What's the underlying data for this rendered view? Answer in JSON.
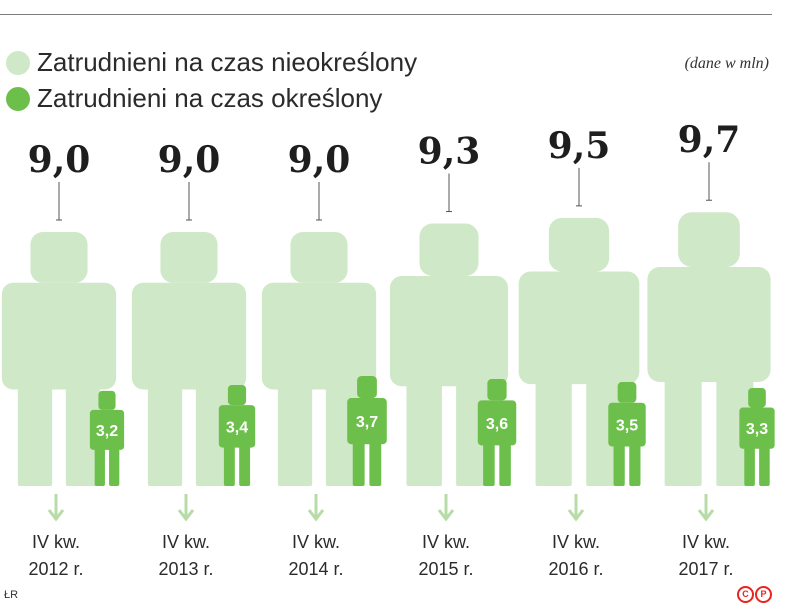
{
  "legend": {
    "items": [
      {
        "label": "Zatrudnieni na czas nieokreślony",
        "color": "#cfe8c7"
      },
      {
        "label": "Zatrudnieni na czas określony",
        "color": "#6cbf4b"
      }
    ]
  },
  "note": "(dane w mln)",
  "source": "ŁR",
  "copyright_mark": "©P",
  "chart_data": {
    "type": "pictogram",
    "categories": [
      "IV kw.\n2012 r.",
      "IV kw.\n2013 r.",
      "IV kw.\n2014 r.",
      "IV kw.\n2015 r.",
      "IV kw.\n2016 r.",
      "IV kw.\n2017 r."
    ],
    "category_lines": [
      [
        "IV kw.",
        "2012 r."
      ],
      [
        "IV kw.",
        "2013 r."
      ],
      [
        "IV kw.",
        "2014 r."
      ],
      [
        "IV kw.",
        "2015 r."
      ],
      [
        "IV kw.",
        "2016 r."
      ],
      [
        "IV kw.",
        "2017 r."
      ]
    ],
    "series": [
      {
        "name": "Zatrudnieni na czas nieokreślony",
        "color": "#cfe8c7",
        "values": [
          9.0,
          9.0,
          9.0,
          9.3,
          9.5,
          9.7
        ],
        "labels": [
          "9,0",
          "9,0",
          "9,0",
          "9,3",
          "9,5",
          "9,7"
        ]
      },
      {
        "name": "Zatrudnieni na czas określony",
        "color": "#6cbf4b",
        "values": [
          3.2,
          3.4,
          3.7,
          3.6,
          3.5,
          3.3
        ],
        "labels": [
          "3,2",
          "3,4",
          "3,7",
          "3,6",
          "3,5",
          "3,3"
        ]
      }
    ]
  }
}
